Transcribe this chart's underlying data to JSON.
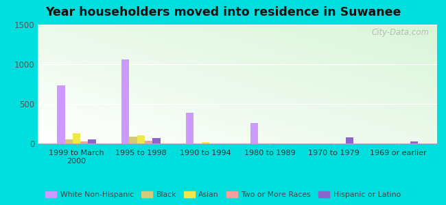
{
  "title": "Year householders moved into residence in Suwanee",
  "categories": [
    "1999 to March\n2000",
    "1995 to 1998",
    "1990 to 1994",
    "1980 to 1989",
    "1970 to 1979",
    "1969 or earlier"
  ],
  "series": {
    "White Non-Hispanic": [
      730,
      1060,
      390,
      255,
      0,
      0
    ],
    "Black": [
      55,
      90,
      0,
      0,
      0,
      0
    ],
    "Asian": [
      130,
      105,
      18,
      0,
      0,
      0
    ],
    "Two or More Races": [
      30,
      35,
      0,
      0,
      0,
      0
    ],
    "Hispanic or Latino": [
      55,
      65,
      0,
      0,
      75,
      30
    ]
  },
  "colors": {
    "White Non-Hispanic": "#cc99ff",
    "Black": "#d4c97a",
    "Asian": "#f0e84a",
    "Two or More Races": "#f4a0a0",
    "Hispanic or Latino": "#8866cc"
  },
  "ylim": [
    0,
    1500
  ],
  "yticks": [
    0,
    500,
    1000,
    1500
  ],
  "bar_width": 0.12,
  "background_outer": "#00dede",
  "watermark": "City-Data.com"
}
